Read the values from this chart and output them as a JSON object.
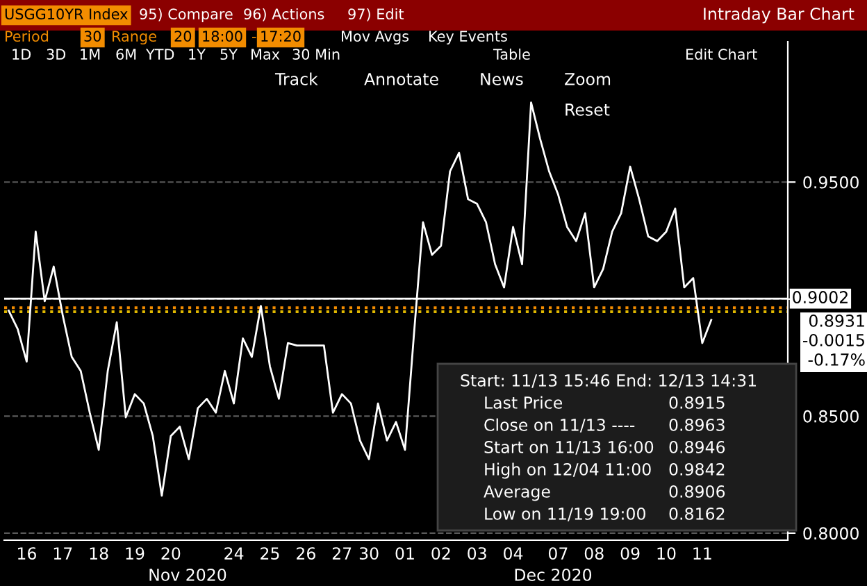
{
  "chart_data": {
    "type": "line",
    "title": "Intraday Bar Chart",
    "categories": [
      null,
      null,
      "16",
      null,
      null,
      null,
      "17",
      null,
      null,
      null,
      "18",
      null,
      null,
      null,
      "19",
      null,
      null,
      null,
      "20",
      null,
      null,
      null,
      null,
      null,
      null,
      "24",
      null,
      null,
      null,
      "25",
      null,
      null,
      null,
      "26",
      null,
      null,
      null,
      "27",
      null,
      null,
      "30",
      null,
      null,
      null,
      "01",
      null,
      null,
      null,
      "02",
      null,
      null,
      null,
      "03",
      null,
      null,
      null,
      "04",
      null,
      null,
      null,
      null,
      "07",
      null,
      null,
      null,
      "08",
      null,
      null,
      null,
      "09",
      null,
      null,
      null,
      "10",
      null,
      null,
      null,
      "11",
      null,
      null,
      null,
      null,
      null,
      null,
      null,
      null,
      null
    ],
    "series": [
      {
        "color": "#ffffff",
        "values": [
          0.8951,
          0.8872,
          0.8733,
          0.9288,
          0.8991,
          0.9139,
          0.8931,
          0.8753,
          0.8693,
          0.8515,
          0.8356,
          0.8693,
          0.8901,
          0.8495,
          0.8594,
          0.8554,
          0.8415,
          0.816,
          0.8415,
          0.8455,
          0.8316,
          0.8534,
          0.8574,
          0.8515,
          0.8693,
          0.8554,
          0.8832,
          0.8753,
          0.8971,
          0.8713,
          0.8574,
          0.8812,
          0.8802,
          0.8802,
          0.8802,
          0.8802,
          0.8515,
          0.8594,
          0.8554,
          0.8396,
          0.8316,
          0.8554,
          0.8396,
          0.8475,
          0.8356,
          0.8852,
          0.9328,
          0.9189,
          0.9228,
          0.9546,
          0.9625,
          0.9427,
          0.9407,
          0.9328,
          0.9149,
          0.905,
          0.9308,
          0.9149,
          0.984,
          0.9685,
          0.9546,
          0.9447,
          0.9308,
          0.9248,
          0.9367,
          0.905,
          0.9129,
          0.9288,
          0.9367,
          0.9566,
          0.9427,
          0.9268,
          0.9248,
          0.9288,
          0.9387,
          0.905,
          0.909,
          0.8812,
          0.8911,
          null,
          null,
          null,
          null,
          null,
          null,
          null,
          null
        ]
      }
    ],
    "ylim": [
      0.797,
      1.01
    ],
    "yticks": [
      {
        "value": 0.8,
        "label": "0.8000"
      },
      {
        "value": 0.85,
        "label": "0.8500"
      },
      {
        "value": 0.9,
        "label": null
      },
      {
        "value": 0.95,
        "label": "0.9500"
      }
    ],
    "grid": "y",
    "ref_lines": [
      {
        "axis": "y",
        "value": 0.9002,
        "label": "0.9002",
        "color": "#ffffff",
        "line_style": "solid"
      },
      {
        "axis": "y",
        "value": 0.8963,
        "color": "#f28c00",
        "line_style": "dotted"
      },
      {
        "axis": "y",
        "value": 0.8946,
        "color": "#e0b800",
        "line_style": "dotted"
      }
    ],
    "annotations": [
      "USGG10YR Index",
      "95) Compare",
      "96) Actions",
      "97) Edit",
      "Period",
      "30",
      "Range",
      "20",
      "18:00",
      "-",
      "17:20",
      "Mov Avgs",
      "Key Events",
      "1D",
      "3D",
      "1M",
      "6M",
      "YTD",
      "1Y",
      "5Y",
      "Max",
      "30 Min",
      "Table",
      "Edit Chart",
      "Track",
      "Annotate",
      "News",
      "Zoom",
      "Reset",
      "Nov 2020",
      "Dec 2020",
      "0.8931",
      "-0.0015",
      "-0.17%",
      "Start: 11/13 15:46 End: 12/13 14:31",
      "Last Price",
      "0.8915",
      "Close on 11/13 ----",
      "0.8963",
      "Start on 11/13 16:00",
      "0.8946",
      "High on 12/04 11:00",
      "0.9842",
      "Average",
      "0.8906",
      "Low on 11/19 19:00",
      "0.8162"
    ]
  }
}
